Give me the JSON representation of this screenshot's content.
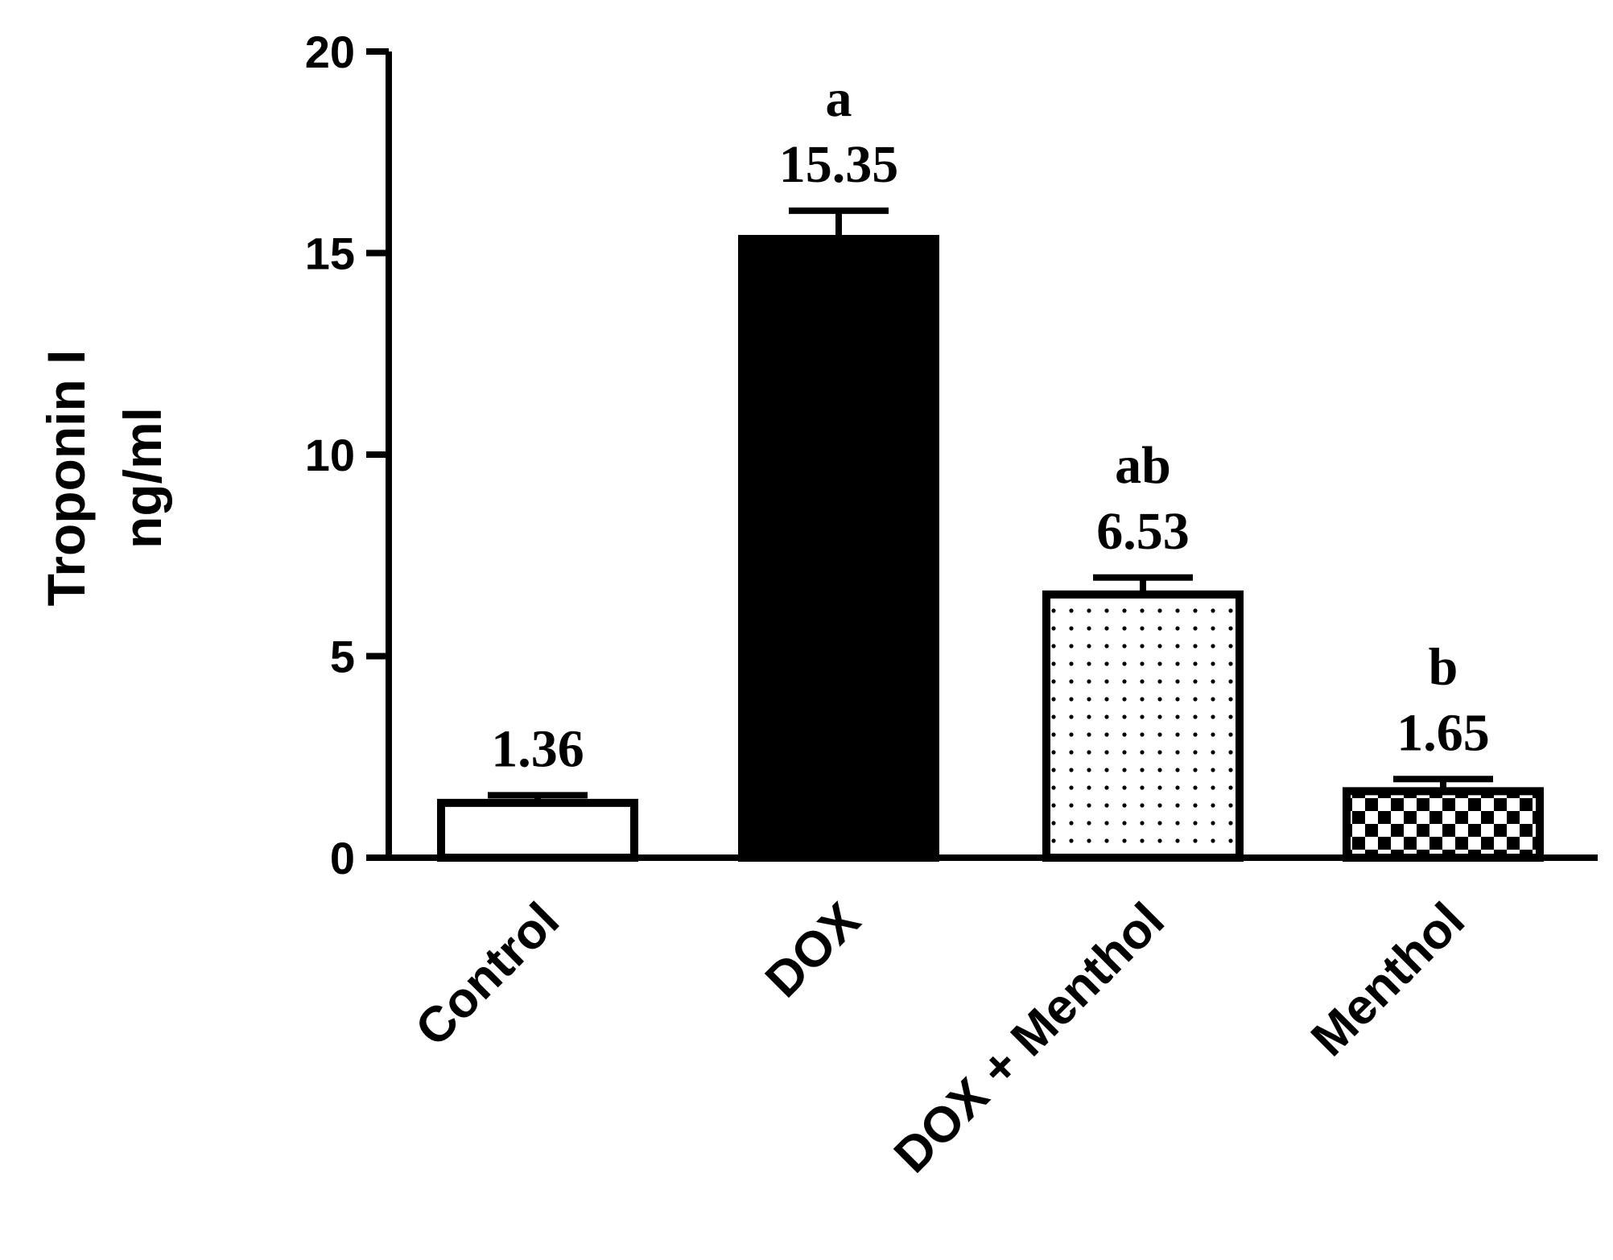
{
  "chart_data": {
    "type": "bar",
    "ylabel_line1": "Troponin I",
    "ylabel_line2": "ng/ml",
    "ylim": [
      0,
      20
    ],
    "yticks": [
      0,
      5,
      10,
      15,
      20
    ],
    "ytick_labels": [
      "0",
      "5",
      "10",
      "15",
      "20"
    ],
    "categories": [
      "Control",
      "DOX",
      "DOX + Menthol",
      "Menthol"
    ],
    "values": [
      1.36,
      15.35,
      6.53,
      1.65
    ],
    "value_labels": [
      "1.36",
      "15.35",
      "6.53",
      "1.65"
    ],
    "error_upper": [
      1.55,
      16.05,
      6.95,
      1.95
    ],
    "significance": [
      "",
      "a",
      "ab",
      "b"
    ],
    "fills": [
      "none",
      "solid",
      "dots",
      "checker"
    ],
    "colors": {
      "bar_stroke": "#000000",
      "solid_fill": "#000000",
      "background": "#ffffff"
    }
  }
}
